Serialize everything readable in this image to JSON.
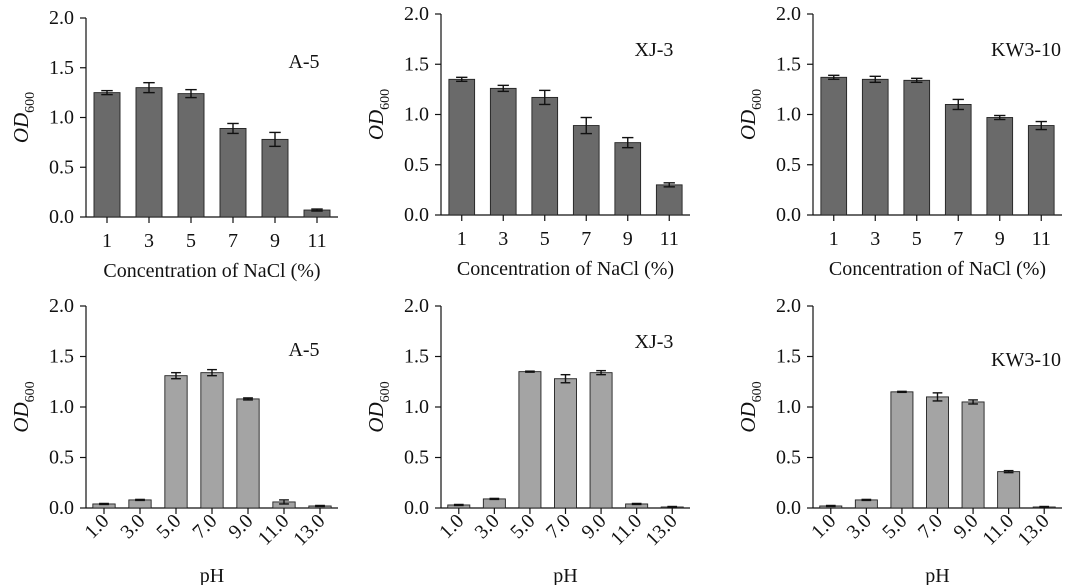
{
  "chart_data": [
    {
      "type": "bar",
      "panel_label": "A-5",
      "categories": [
        "1",
        "3",
        "5",
        "7",
        "9",
        "11"
      ],
      "values": [
        1.25,
        1.3,
        1.24,
        0.89,
        0.78,
        0.07
      ],
      "errors": [
        0.02,
        0.05,
        0.04,
        0.05,
        0.07,
        0.01
      ],
      "xlabel": "Concentration of NaCl (%)",
      "ylabel": "OD",
      "ylabel_sub": "600",
      "ylim": [
        0,
        2.0
      ],
      "yticks": [
        "0.0",
        "0.5",
        "1.0",
        "1.5",
        "2.0"
      ],
      "bar_color": "#6a6a6a",
      "rotate_xticks": false
    },
    {
      "type": "bar",
      "panel_label": "XJ-3",
      "categories": [
        "1",
        "3",
        "5",
        "7",
        "9",
        "11"
      ],
      "values": [
        1.35,
        1.26,
        1.17,
        0.89,
        0.72,
        0.3
      ],
      "errors": [
        0.02,
        0.03,
        0.07,
        0.08,
        0.05,
        0.02
      ],
      "xlabel": "Concentration of NaCl (%)",
      "ylabel": "OD",
      "ylabel_sub": "600",
      "ylim": [
        0,
        2.0
      ],
      "yticks": [
        "0.0",
        "0.5",
        "1.0",
        "1.5",
        "2.0"
      ],
      "bar_color": "#6a6a6a",
      "rotate_xticks": false
    },
    {
      "type": "bar",
      "panel_label": "KW3-10",
      "categories": [
        "1",
        "3",
        "5",
        "7",
        "9",
        "11"
      ],
      "values": [
        1.37,
        1.35,
        1.34,
        1.1,
        0.97,
        0.89
      ],
      "errors": [
        0.02,
        0.03,
        0.02,
        0.05,
        0.02,
        0.04
      ],
      "xlabel": "Concentration of NaCl (%)",
      "ylabel": "OD",
      "ylabel_sub": "600",
      "ylim": [
        0,
        2.0
      ],
      "yticks": [
        "0.0",
        "0.5",
        "1.0",
        "1.5",
        "2.0"
      ],
      "bar_color": "#6a6a6a",
      "rotate_xticks": false
    },
    {
      "type": "bar",
      "panel_label": "A-5",
      "categories": [
        "1.0",
        "3.0",
        "5.0",
        "7.0",
        "9.0",
        "11.0",
        "13.0"
      ],
      "values": [
        0.04,
        0.08,
        1.31,
        1.34,
        1.08,
        0.06,
        0.02
      ],
      "errors": [
        0.005,
        0.005,
        0.03,
        0.03,
        0.01,
        0.02,
        0.005
      ],
      "xlabel": "pH",
      "ylabel": "OD",
      "ylabel_sub": "600",
      "ylim": [
        0,
        2.0
      ],
      "yticks": [
        "0.0",
        "0.5",
        "1.0",
        "1.5",
        "2.0"
      ],
      "bar_color": "#a4a4a4",
      "rotate_xticks": true
    },
    {
      "type": "bar",
      "panel_label": "XJ-3",
      "categories": [
        "1.0",
        "3.0",
        "5.0",
        "7.0",
        "9.0",
        "11.0",
        "13.0"
      ],
      "values": [
        0.03,
        0.09,
        1.35,
        1.28,
        1.34,
        0.04,
        0.01
      ],
      "errors": [
        0.005,
        0.005,
        0.005,
        0.04,
        0.02,
        0.005,
        0.005
      ],
      "xlabel": "pH",
      "ylabel": "OD",
      "ylabel_sub": "600",
      "ylim": [
        0,
        2.0
      ],
      "yticks": [
        "0.0",
        "0.5",
        "1.0",
        "1.5",
        "2.0"
      ],
      "bar_color": "#a4a4a4",
      "rotate_xticks": true
    },
    {
      "type": "bar",
      "panel_label": "KW3-10",
      "categories": [
        "1.0",
        "3.0",
        "5.0",
        "7.0",
        "9.0",
        "11.0",
        "13.0"
      ],
      "values": [
        0.02,
        0.08,
        1.15,
        1.1,
        1.05,
        0.36,
        0.01
      ],
      "errors": [
        0.005,
        0.005,
        0.005,
        0.04,
        0.02,
        0.01,
        0.005
      ],
      "xlabel": "pH",
      "ylabel": "OD",
      "ylabel_sub": "600",
      "ylim": [
        0,
        2.0
      ],
      "yticks": [
        "0.0",
        "0.5",
        "1.0",
        "1.5",
        "2.0"
      ],
      "bar_color": "#a4a4a4",
      "rotate_xticks": true
    }
  ]
}
